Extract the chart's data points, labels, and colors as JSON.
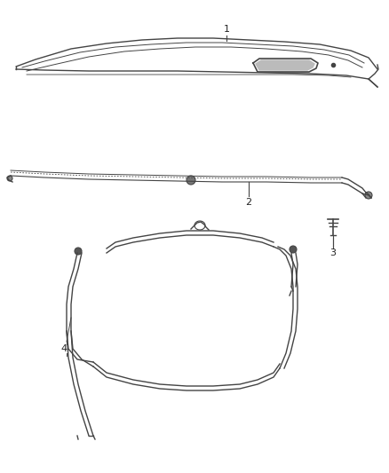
{
  "background_color": "#ffffff",
  "line_color": "#444444",
  "label_color": "#222222",
  "fig_width": 4.38,
  "fig_height": 5.33,
  "dpi": 100
}
